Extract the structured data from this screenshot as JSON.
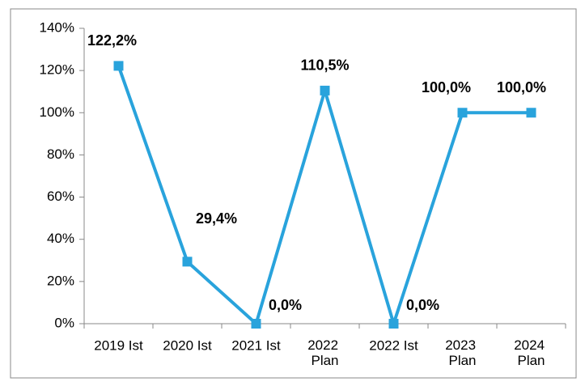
{
  "chart_data": {
    "type": "line",
    "categories": [
      "2019 Ist",
      "2020 Ist",
      "2021 Ist",
      "2022 Plan",
      "2022 Ist",
      "2023 Plan",
      "2024 Plan"
    ],
    "series": [
      {
        "name": "Wert",
        "color": "#29a3dc",
        "values": [
          122.2,
          29.4,
          0,
          110.5,
          0,
          100,
          100
        ],
        "value_labels": [
          "122,2%",
          "29,4%",
          "0,0%",
          "110,5%",
          "0,0%",
          "100,0%",
          "100,0%"
        ]
      }
    ],
    "ylim": [
      0,
      140
    ],
    "yticks": [
      {
        "value": 0,
        "label": "0%"
      },
      {
        "value": 20,
        "label": "20%"
      },
      {
        "value": 40,
        "label": "40%"
      },
      {
        "value": 60,
        "label": "60%"
      },
      {
        "value": 80,
        "label": "80%"
      },
      {
        "value": 100,
        "label": "100%"
      },
      {
        "value": 120,
        "label": "120%"
      },
      {
        "value": 140,
        "label": "140%"
      }
    ],
    "grid": false,
    "legend": false
  }
}
